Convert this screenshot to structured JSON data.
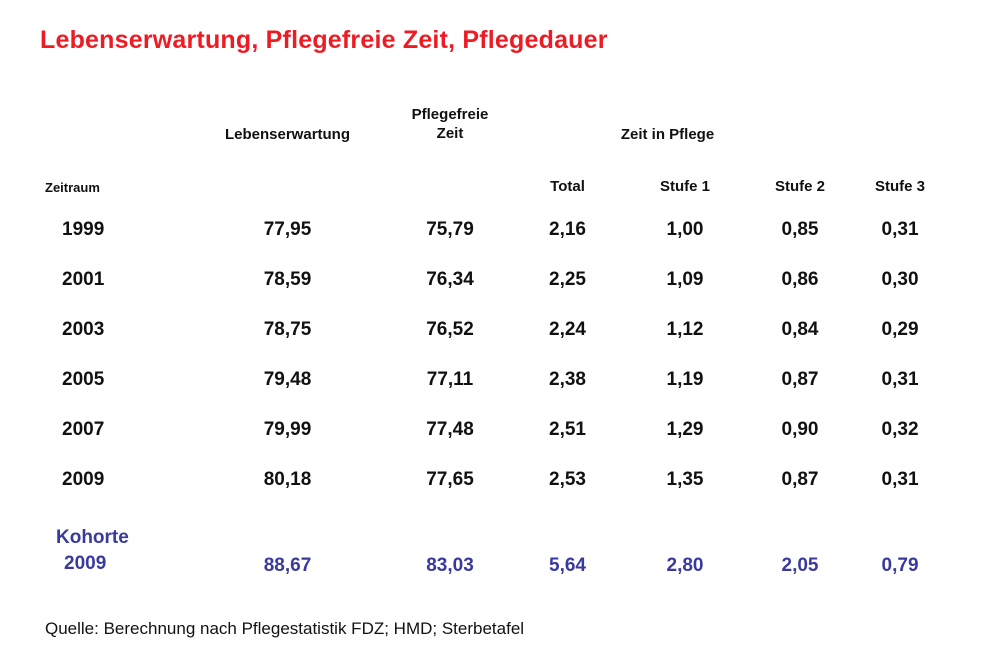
{
  "title": "Lebenserwartung, Pflegefreie Zeit, Pflegedauer",
  "colors": {
    "title_red": "#ed1c24",
    "cohort_blue": "#3a3a9e"
  },
  "table": {
    "group_headers": {
      "lebenserwartung": "Lebenserwartung",
      "pflegefreie_zeit": "Pflegefreie Zeit",
      "zeit_in_pflege": "Zeit in Pflege"
    },
    "sub_headers": {
      "zeitraum": "Zeitraum",
      "total": "Total",
      "stufe1": "Stufe 1",
      "stufe2": "Stufe 2",
      "stufe3": "Stufe 3"
    },
    "rows": [
      {
        "label": "1999",
        "values": [
          "77,95",
          "75,79",
          "2,16",
          "1,00",
          "0,85",
          "0,31"
        ]
      },
      {
        "label": "2001",
        "values": [
          "78,59",
          "76,34",
          "2,25",
          "1,09",
          "0,86",
          "0,30"
        ]
      },
      {
        "label": "2003",
        "values": [
          "78,75",
          "76,52",
          "2,24",
          "1,12",
          "0,84",
          "0,29"
        ]
      },
      {
        "label": "2005",
        "values": [
          "79,48",
          "77,11",
          "2,38",
          "1,19",
          "0,87",
          "0,31"
        ]
      },
      {
        "label": "2007",
        "values": [
          "79,99",
          "77,48",
          "2,51",
          "1,29",
          "0,90",
          "0,32"
        ]
      },
      {
        "label": "2009",
        "values": [
          "80,18",
          "77,65",
          "2,53",
          "1,35",
          "0,87",
          "0,31"
        ]
      }
    ],
    "cohort_row": {
      "label_line1": "Kohorte",
      "label_line2": "2009",
      "values": [
        "88,67",
        "83,03",
        "5,64",
        "2,80",
        "2,05",
        "0,79"
      ]
    }
  },
  "source": "Quelle: Berechnung nach Pflegestatistik FDZ; HMD; Sterbetafel",
  "chart_data": {
    "type": "table",
    "title": "Lebenserwartung, Pflegefreie Zeit, Pflegedauer",
    "columns": [
      "Zeitraum",
      "Lebenserwartung",
      "Pflegefreie Zeit",
      "Zeit in Pflege: Total",
      "Zeit in Pflege: Stufe 1",
      "Zeit in Pflege: Stufe 2",
      "Zeit in Pflege: Stufe 3"
    ],
    "rows": [
      [
        "1999",
        77.95,
        75.79,
        2.16,
        1.0,
        0.85,
        0.31
      ],
      [
        "2001",
        78.59,
        76.34,
        2.25,
        1.09,
        0.86,
        0.3
      ],
      [
        "2003",
        78.75,
        76.52,
        2.24,
        1.12,
        0.84,
        0.29
      ],
      [
        "2005",
        79.48,
        77.11,
        2.38,
        1.19,
        0.87,
        0.31
      ],
      [
        "2007",
        79.99,
        77.48,
        2.51,
        1.29,
        0.9,
        0.32
      ],
      [
        "2009",
        80.18,
        77.65,
        2.53,
        1.35,
        0.87,
        0.31
      ],
      [
        "Kohorte 2009",
        88.67,
        83.03,
        5.64,
        2.8,
        2.05,
        0.79
      ]
    ],
    "notes": "Decimal comma used in display; Kohorte 2009 row highlighted in blue",
    "source": "Quelle: Berechnung nach Pflegestatistik FDZ; HMD; Sterbetafel"
  }
}
